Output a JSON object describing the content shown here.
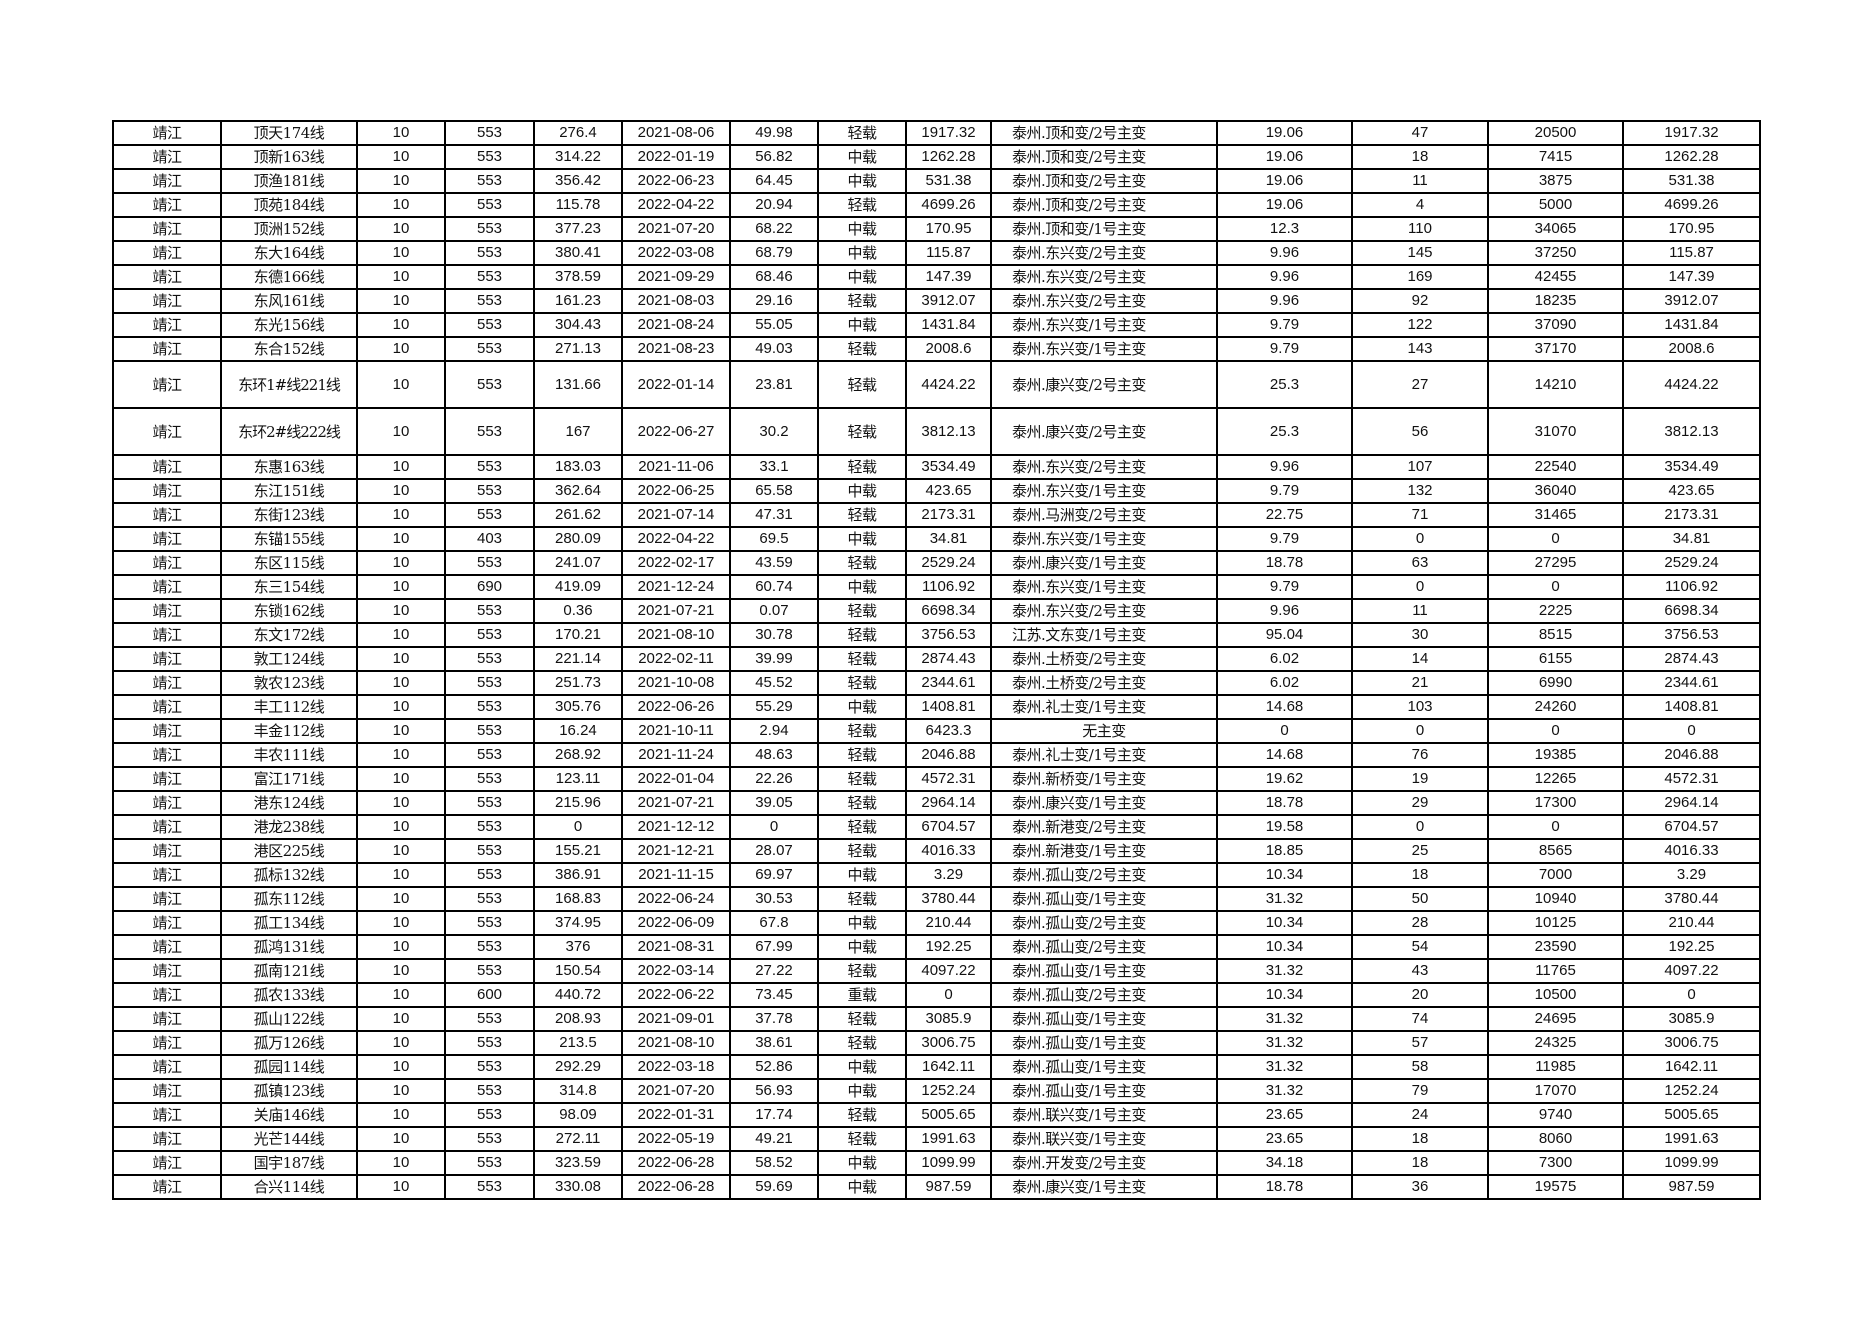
{
  "table": {
    "rows": [
      [
        "靖江",
        "顶天174线",
        "10",
        "553",
        "276.4",
        "2021-08-06",
        "49.98",
        "轻载",
        "1917.32",
        "泰州.顶和变/2号主变",
        "19.06",
        "47",
        "20500",
        "1917.32"
      ],
      [
        "靖江",
        "顶新163线",
        "10",
        "553",
        "314.22",
        "2022-01-19",
        "56.82",
        "中载",
        "1262.28",
        "泰州.顶和变/2号主变",
        "19.06",
        "18",
        "7415",
        "1262.28"
      ],
      [
        "靖江",
        "顶渔181线",
        "10",
        "553",
        "356.42",
        "2022-06-23",
        "64.45",
        "中载",
        "531.38",
        "泰州.顶和变/2号主变",
        "19.06",
        "11",
        "3875",
        "531.38"
      ],
      [
        "靖江",
        "顶苑184线",
        "10",
        "553",
        "115.78",
        "2022-04-22",
        "20.94",
        "轻载",
        "4699.26",
        "泰州.顶和变/2号主变",
        "19.06",
        "4",
        "5000",
        "4699.26"
      ],
      [
        "靖江",
        "顶洲152线",
        "10",
        "553",
        "377.23",
        "2021-07-20",
        "68.22",
        "中载",
        "170.95",
        "泰州.顶和变/1号主变",
        "12.3",
        "110",
        "34065",
        "170.95"
      ],
      [
        "靖江",
        "东大164线",
        "10",
        "553",
        "380.41",
        "2022-03-08",
        "68.79",
        "中载",
        "115.87",
        "泰州.东兴变/2号主变",
        "9.96",
        "145",
        "37250",
        "115.87"
      ],
      [
        "靖江",
        "东德166线",
        "10",
        "553",
        "378.59",
        "2021-09-29",
        "68.46",
        "中载",
        "147.39",
        "泰州.东兴变/2号主变",
        "9.96",
        "169",
        "42455",
        "147.39"
      ],
      [
        "靖江",
        "东风161线",
        "10",
        "553",
        "161.23",
        "2021-08-03",
        "29.16",
        "轻载",
        "3912.07",
        "泰州.东兴变/2号主变",
        "9.96",
        "92",
        "18235",
        "3912.07"
      ],
      [
        "靖江",
        "东光156线",
        "10",
        "553",
        "304.43",
        "2021-08-24",
        "55.05",
        "中载",
        "1431.84",
        "泰州.东兴变/1号主变",
        "9.79",
        "122",
        "37090",
        "1431.84"
      ],
      [
        "靖江",
        "东合152线",
        "10",
        "553",
        "271.13",
        "2021-08-23",
        "49.03",
        "轻载",
        "2008.6",
        "泰州.东兴变/1号主变",
        "9.79",
        "143",
        "37170",
        "2008.6"
      ],
      [
        "靖江",
        "东环1#线221线",
        "10",
        "553",
        "131.66",
        "2022-01-14",
        "23.81",
        "轻载",
        "4424.22",
        "泰州.康兴变/2号主变",
        "25.3",
        "27",
        "14210",
        "4424.22"
      ],
      [
        "靖江",
        "东环2#线222线",
        "10",
        "553",
        "167",
        "2022-06-27",
        "30.2",
        "轻载",
        "3812.13",
        "泰州.康兴变/2号主变",
        "25.3",
        "56",
        "31070",
        "3812.13"
      ],
      [
        "靖江",
        "东惠163线",
        "10",
        "553",
        "183.03",
        "2021-11-06",
        "33.1",
        "轻载",
        "3534.49",
        "泰州.东兴变/2号主变",
        "9.96",
        "107",
        "22540",
        "3534.49"
      ],
      [
        "靖江",
        "东江151线",
        "10",
        "553",
        "362.64",
        "2022-06-25",
        "65.58",
        "中载",
        "423.65",
        "泰州.东兴变/1号主变",
        "9.79",
        "132",
        "36040",
        "423.65"
      ],
      [
        "靖江",
        "东街123线",
        "10",
        "553",
        "261.62",
        "2021-07-14",
        "47.31",
        "轻载",
        "2173.31",
        "泰州.马洲变/2号主变",
        "22.75",
        "71",
        "31465",
        "2173.31"
      ],
      [
        "靖江",
        "东锚155线",
        "10",
        "403",
        "280.09",
        "2022-04-22",
        "69.5",
        "中载",
        "34.81",
        "泰州.东兴变/1号主变",
        "9.79",
        "0",
        "0",
        "34.81"
      ],
      [
        "靖江",
        "东区115线",
        "10",
        "553",
        "241.07",
        "2022-02-17",
        "43.59",
        "轻载",
        "2529.24",
        "泰州.康兴变/1号主变",
        "18.78",
        "63",
        "27295",
        "2529.24"
      ],
      [
        "靖江",
        "东三154线",
        "10",
        "690",
        "419.09",
        "2021-12-24",
        "60.74",
        "中载",
        "1106.92",
        "泰州.东兴变/1号主变",
        "9.79",
        "0",
        "0",
        "1106.92"
      ],
      [
        "靖江",
        "东锁162线",
        "10",
        "553",
        "0.36",
        "2021-07-21",
        "0.07",
        "轻载",
        "6698.34",
        "泰州.东兴变/2号主变",
        "9.96",
        "11",
        "2225",
        "6698.34"
      ],
      [
        "靖江",
        "东文172线",
        "10",
        "553",
        "170.21",
        "2021-08-10",
        "30.78",
        "轻载",
        "3756.53",
        "江苏.文东变/1号主变",
        "95.04",
        "30",
        "8515",
        "3756.53"
      ],
      [
        "靖江",
        "敦工124线",
        "10",
        "553",
        "221.14",
        "2022-02-11",
        "39.99",
        "轻载",
        "2874.43",
        "泰州.土桥变/2号主变",
        "6.02",
        "14",
        "6155",
        "2874.43"
      ],
      [
        "靖江",
        "敦农123线",
        "10",
        "553",
        "251.73",
        "2021-10-08",
        "45.52",
        "轻载",
        "2344.61",
        "泰州.土桥变/2号主变",
        "6.02",
        "21",
        "6990",
        "2344.61"
      ],
      [
        "靖江",
        "丰工112线",
        "10",
        "553",
        "305.76",
        "2022-06-26",
        "55.29",
        "中载",
        "1408.81",
        "泰州.礼士变/1号主变",
        "14.68",
        "103",
        "24260",
        "1408.81"
      ],
      [
        "靖江",
        "丰金112线",
        "10",
        "553",
        "16.24",
        "2021-10-11",
        "2.94",
        "轻载",
        "6423.3",
        "无主变",
        "0",
        "0",
        "0",
        "0"
      ],
      [
        "靖江",
        "丰农111线",
        "10",
        "553",
        "268.92",
        "2021-11-24",
        "48.63",
        "轻载",
        "2046.88",
        "泰州.礼士变/1号主变",
        "14.68",
        "76",
        "19385",
        "2046.88"
      ],
      [
        "靖江",
        "富江171线",
        "10",
        "553",
        "123.11",
        "2022-01-04",
        "22.26",
        "轻载",
        "4572.31",
        "泰州.新桥变/1号主变",
        "19.62",
        "19",
        "12265",
        "4572.31"
      ],
      [
        "靖江",
        "港东124线",
        "10",
        "553",
        "215.96",
        "2021-07-21",
        "39.05",
        "轻载",
        "2964.14",
        "泰州.康兴变/1号主变",
        "18.78",
        "29",
        "17300",
        "2964.14"
      ],
      [
        "靖江",
        "港龙238线",
        "10",
        "553",
        "0",
        "2021-12-12",
        "0",
        "轻载",
        "6704.57",
        "泰州.新港变/2号主变",
        "19.58",
        "0",
        "0",
        "6704.57"
      ],
      [
        "靖江",
        "港区225线",
        "10",
        "553",
        "155.21",
        "2021-12-21",
        "28.07",
        "轻载",
        "4016.33",
        "泰州.新港变/1号主变",
        "18.85",
        "25",
        "8565",
        "4016.33"
      ],
      [
        "靖江",
        "孤标132线",
        "10",
        "553",
        "386.91",
        "2021-11-15",
        "69.97",
        "中载",
        "3.29",
        "泰州.孤山变/2号主变",
        "10.34",
        "18",
        "7000",
        "3.29"
      ],
      [
        "靖江",
        "孤东112线",
        "10",
        "553",
        "168.83",
        "2022-06-24",
        "30.53",
        "轻载",
        "3780.44",
        "泰州.孤山变/1号主变",
        "31.32",
        "50",
        "10940",
        "3780.44"
      ],
      [
        "靖江",
        "孤工134线",
        "10",
        "553",
        "374.95",
        "2022-06-09",
        "67.8",
        "中载",
        "210.44",
        "泰州.孤山变/2号主变",
        "10.34",
        "28",
        "10125",
        "210.44"
      ],
      [
        "靖江",
        "孤鸿131线",
        "10",
        "553",
        "376",
        "2021-08-31",
        "67.99",
        "中载",
        "192.25",
        "泰州.孤山变/2号主变",
        "10.34",
        "54",
        "23590",
        "192.25"
      ],
      [
        "靖江",
        "孤南121线",
        "10",
        "553",
        "150.54",
        "2022-03-14",
        "27.22",
        "轻载",
        "4097.22",
        "泰州.孤山变/1号主变",
        "31.32",
        "43",
        "11765",
        "4097.22"
      ],
      [
        "靖江",
        "孤农133线",
        "10",
        "600",
        "440.72",
        "2022-06-22",
        "73.45",
        "重载",
        "0",
        "泰州.孤山变/2号主变",
        "10.34",
        "20",
        "10500",
        "0"
      ],
      [
        "靖江",
        "孤山122线",
        "10",
        "553",
        "208.93",
        "2021-09-01",
        "37.78",
        "轻载",
        "3085.9",
        "泰州.孤山变/1号主变",
        "31.32",
        "74",
        "24695",
        "3085.9"
      ],
      [
        "靖江",
        "孤万126线",
        "10",
        "553",
        "213.5",
        "2021-08-10",
        "38.61",
        "轻载",
        "3006.75",
        "泰州.孤山变/1号主变",
        "31.32",
        "57",
        "24325",
        "3006.75"
      ],
      [
        "靖江",
        "孤园114线",
        "10",
        "553",
        "292.29",
        "2022-03-18",
        "52.86",
        "中载",
        "1642.11",
        "泰州.孤山变/1号主变",
        "31.32",
        "58",
        "11985",
        "1642.11"
      ],
      [
        "靖江",
        "孤镇123线",
        "10",
        "553",
        "314.8",
        "2021-07-20",
        "56.93",
        "中载",
        "1252.24",
        "泰州.孤山变/1号主变",
        "31.32",
        "79",
        "17070",
        "1252.24"
      ],
      [
        "靖江",
        "关庙146线",
        "10",
        "553",
        "98.09",
        "2022-01-31",
        "17.74",
        "轻载",
        "5005.65",
        "泰州.联兴变/1号主变",
        "23.65",
        "24",
        "9740",
        "5005.65"
      ],
      [
        "靖江",
        "光芒144线",
        "10",
        "553",
        "272.11",
        "2022-05-19",
        "49.21",
        "轻载",
        "1991.63",
        "泰州.联兴变/1号主变",
        "23.65",
        "18",
        "8060",
        "1991.63"
      ],
      [
        "靖江",
        "国宇187线",
        "10",
        "553",
        "323.59",
        "2022-06-28",
        "58.52",
        "中载",
        "1099.99",
        "泰州.开发变/2号主变",
        "34.18",
        "18",
        "7300",
        "1099.99"
      ],
      [
        "靖江",
        "合兴114线",
        "10",
        "553",
        "330.08",
        "2022-06-28",
        "59.69",
        "中载",
        "987.59",
        "泰州.康兴变/1号主变",
        "18.78",
        "36",
        "19575",
        "987.59"
      ]
    ]
  }
}
